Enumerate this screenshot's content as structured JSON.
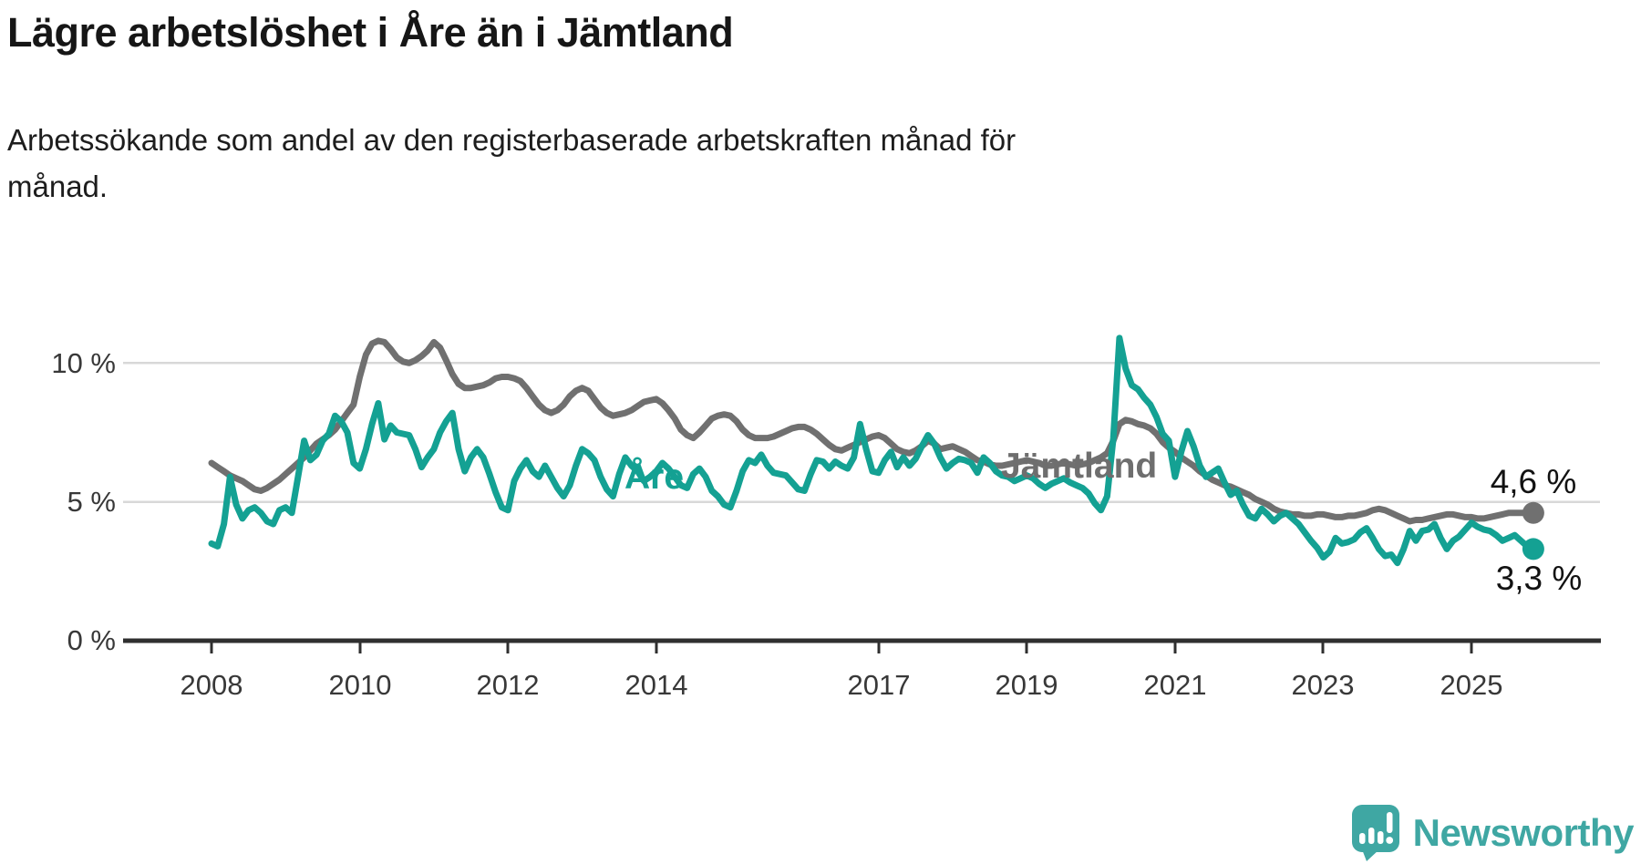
{
  "header": {
    "title": "Lägre arbetslöshet i Åre än i Jämtland",
    "subtitle": "Arbetssökande som andel av den registerbaserade arbetskraften månad för månad.",
    "subtitle_lines": [
      "Arbetssökande som andel av den registerbaserade arbetskraften månad för",
      "månad."
    ]
  },
  "chart_data": {
    "type": "line",
    "title": "Lägre arbetslöshet i Åre än i Jämtland",
    "subtitle": "Arbetssökande som andel av den registerbaserade arbetskraften månad för månad.",
    "unit": "%",
    "frequency": "monthly",
    "x_range": {
      "start": "2008-01",
      "end": "2025-11"
    },
    "ylim": [
      0,
      11.5
    ],
    "grid": "horizontal",
    "legend_position": "inline-labels",
    "x_tick_labels": [
      "2008",
      "2010",
      "2012",
      "2014",
      "2017",
      "2019",
      "2021",
      "2023",
      "2025"
    ],
    "y_tick_labels": [
      "0 %",
      "5 %",
      "10 %"
    ],
    "series": [
      {
        "name": "Jämtland",
        "color": "#707070",
        "end_value": 4.6,
        "end_label": "4,6 %",
        "values": [
          6.4,
          6.25,
          6.1,
          5.95,
          5.85,
          5.75,
          5.6,
          5.45,
          5.4,
          5.5,
          5.65,
          5.8,
          6.0,
          6.2,
          6.4,
          6.6,
          6.85,
          7.1,
          7.25,
          7.4,
          7.6,
          7.9,
          8.2,
          8.5,
          9.5,
          10.3,
          10.7,
          10.8,
          10.75,
          10.5,
          10.2,
          10.05,
          10.0,
          10.1,
          10.25,
          10.45,
          10.75,
          10.55,
          10.1,
          9.6,
          9.25,
          9.1,
          9.1,
          9.15,
          9.2,
          9.3,
          9.45,
          9.5,
          9.5,
          9.45,
          9.35,
          9.1,
          8.8,
          8.5,
          8.3,
          8.2,
          8.3,
          8.5,
          8.8,
          9.0,
          9.1,
          9.0,
          8.7,
          8.4,
          8.2,
          8.1,
          8.15,
          8.2,
          8.3,
          8.45,
          8.6,
          8.65,
          8.7,
          8.55,
          8.3,
          8.0,
          7.6,
          7.4,
          7.3,
          7.5,
          7.75,
          8.0,
          8.1,
          8.15,
          8.1,
          7.9,
          7.6,
          7.4,
          7.3,
          7.3,
          7.3,
          7.35,
          7.45,
          7.55,
          7.65,
          7.7,
          7.7,
          7.6,
          7.45,
          7.25,
          7.05,
          6.9,
          6.85,
          6.95,
          7.05,
          7.15,
          7.25,
          7.35,
          7.4,
          7.3,
          7.1,
          6.9,
          6.8,
          6.75,
          6.85,
          7.0,
          7.2,
          7.1,
          6.9,
          6.95,
          7.0,
          6.9,
          6.8,
          6.65,
          6.5,
          6.45,
          6.35,
          6.3,
          6.3,
          6.35,
          6.4,
          6.45,
          6.5,
          6.45,
          6.4,
          6.3,
          6.3,
          6.35,
          6.4,
          6.35,
          6.3,
          6.35,
          6.4,
          6.5,
          6.6,
          6.75,
          7.2,
          7.8,
          7.95,
          7.9,
          7.8,
          7.75,
          7.65,
          7.45,
          7.15,
          6.95,
          6.8,
          6.6,
          6.45,
          6.3,
          6.1,
          5.95,
          5.8,
          5.7,
          5.6,
          5.55,
          5.45,
          5.35,
          5.25,
          5.1,
          5.0,
          4.9,
          4.75,
          4.65,
          4.6,
          4.55,
          4.55,
          4.5,
          4.5,
          4.55,
          4.55,
          4.5,
          4.45,
          4.45,
          4.5,
          4.5,
          4.55,
          4.6,
          4.7,
          4.75,
          4.7,
          4.6,
          4.5,
          4.4,
          4.3,
          4.35,
          4.35,
          4.4,
          4.45,
          4.5,
          4.55,
          4.55,
          4.5,
          4.45,
          4.45,
          4.4,
          4.4,
          4.45,
          4.5,
          4.55,
          4.6,
          4.6,
          4.6,
          4.6,
          4.6
        ]
      },
      {
        "name": "Åre",
        "color": "#14A193",
        "end_value": 3.3,
        "end_label": "3,3 %",
        "values": [
          3.5,
          3.4,
          4.2,
          5.9,
          4.9,
          4.4,
          4.7,
          4.8,
          4.6,
          4.3,
          4.2,
          4.7,
          4.8,
          4.6,
          5.9,
          7.2,
          6.5,
          6.7,
          7.2,
          7.45,
          8.1,
          7.9,
          7.5,
          6.4,
          6.2,
          6.9,
          7.8,
          8.55,
          7.25,
          7.75,
          7.5,
          7.45,
          7.4,
          6.9,
          6.25,
          6.6,
          6.9,
          7.5,
          7.9,
          8.2,
          6.9,
          6.1,
          6.6,
          6.9,
          6.6,
          6.0,
          5.35,
          4.8,
          4.7,
          5.75,
          6.2,
          6.5,
          6.1,
          5.9,
          6.3,
          5.9,
          5.5,
          5.2,
          5.6,
          6.3,
          6.9,
          6.75,
          6.5,
          5.9,
          5.45,
          5.2,
          6.0,
          6.6,
          6.3,
          6.1,
          5.75,
          5.9,
          6.1,
          6.4,
          6.2,
          5.9,
          5.6,
          5.5,
          6.0,
          6.2,
          5.9,
          5.4,
          5.2,
          4.9,
          4.8,
          5.4,
          6.1,
          6.5,
          6.4,
          6.7,
          6.3,
          6.05,
          6.0,
          5.95,
          5.7,
          5.45,
          5.4,
          6.0,
          6.5,
          6.45,
          6.2,
          6.45,
          6.3,
          6.2,
          6.6,
          7.8,
          6.9,
          6.1,
          6.05,
          6.5,
          6.8,
          6.25,
          6.6,
          6.3,
          6.55,
          7.0,
          7.4,
          7.1,
          6.6,
          6.2,
          6.4,
          6.55,
          6.5,
          6.4,
          6.05,
          6.6,
          6.4,
          6.1,
          5.95,
          5.9,
          5.75,
          5.85,
          5.95,
          5.85,
          5.65,
          5.5,
          5.65,
          5.75,
          5.85,
          5.7,
          5.6,
          5.5,
          5.3,
          4.95,
          4.7,
          5.2,
          7.3,
          10.9,
          9.8,
          9.2,
          9.05,
          8.75,
          8.5,
          8.05,
          7.45,
          7.2,
          5.9,
          6.8,
          7.55,
          7.0,
          6.3,
          5.9,
          6.05,
          6.2,
          5.7,
          5.25,
          5.4,
          4.9,
          4.5,
          4.4,
          4.75,
          4.55,
          4.3,
          4.5,
          4.6,
          4.4,
          4.2,
          3.9,
          3.6,
          3.35,
          3.0,
          3.2,
          3.7,
          3.5,
          3.55,
          3.65,
          3.9,
          4.05,
          3.7,
          3.3,
          3.05,
          3.1,
          2.8,
          3.3,
          3.95,
          3.6,
          3.95,
          4.0,
          4.2,
          3.7,
          3.3,
          3.6,
          3.75,
          4.0,
          4.25,
          4.1,
          4.0,
          3.95,
          3.8,
          3.6,
          3.7,
          3.8,
          3.6,
          3.4,
          3.3
        ]
      }
    ]
  },
  "colors": {
    "jamtland_line": "#707070",
    "are_line": "#14A193",
    "gridline": "#d8d8d8",
    "axis": "#2f2f2f",
    "brand_teal": "#3FA7A3"
  },
  "footer": {
    "brand": "Newsworthy"
  }
}
